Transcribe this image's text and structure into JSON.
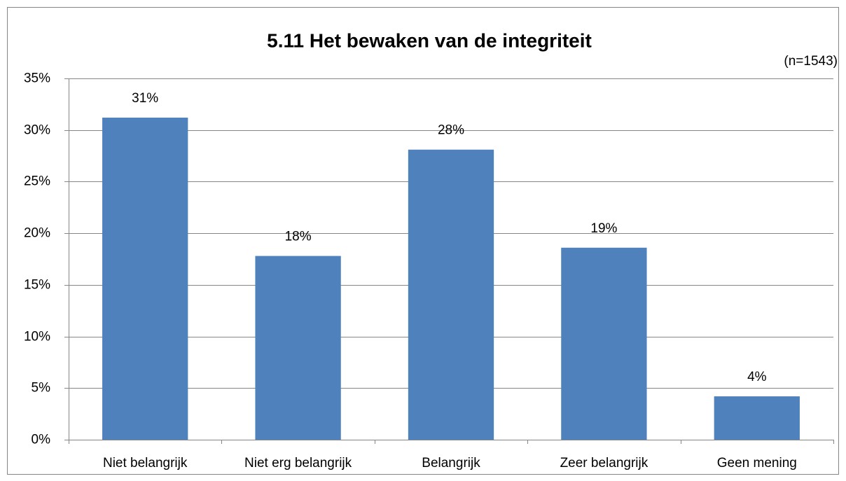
{
  "chart_data": {
    "type": "bar",
    "title": "5.11 Het bewaken van de integriteit",
    "subtitle": "(n=1543)",
    "categories": [
      "Niet belangrijk",
      "Niet erg belangrijk",
      "Belangrijk",
      "Zeer belangrijk",
      "Geen mening"
    ],
    "values": [
      31.2,
      17.8,
      28.1,
      18.6,
      4.2
    ],
    "value_labels": [
      "31%",
      "18%",
      "28%",
      "19%",
      "4%"
    ],
    "color": "#4f81bd",
    "ylim": [
      0,
      35
    ],
    "yticks": [
      {
        "value": 0,
        "label": "0%"
      },
      {
        "value": 5,
        "label": "5%"
      },
      {
        "value": 10,
        "label": "10%"
      },
      {
        "value": 15,
        "label": "15%"
      },
      {
        "value": 20,
        "label": "20%"
      },
      {
        "value": 25,
        "label": "25%"
      },
      {
        "value": 30,
        "label": "30%"
      },
      {
        "value": 35,
        "label": "35%"
      }
    ],
    "grid": true
  }
}
